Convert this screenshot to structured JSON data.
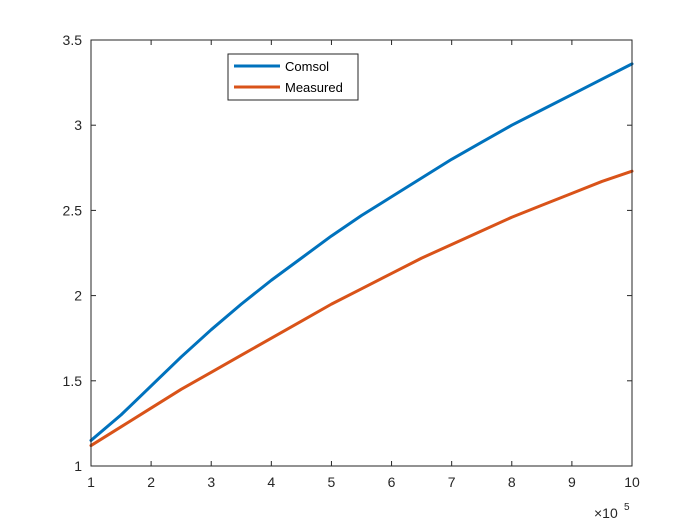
{
  "chart_data": {
    "type": "line",
    "title": "",
    "xlabel": "",
    "ylabel": "",
    "x_multiplier": "×10",
    "x_multiplier_exponent": "5",
    "xlim": [
      1,
      10
    ],
    "ylim": [
      1,
      3.5
    ],
    "x_ticks": [
      1,
      2,
      3,
      4,
      5,
      6,
      7,
      8,
      9,
      10
    ],
    "x_tick_labels": [
      "1",
      "2",
      "3",
      "4",
      "5",
      "6",
      "7",
      "8",
      "9",
      "10"
    ],
    "y_ticks": [
      1,
      1.5,
      2,
      2.5,
      3,
      3.5
    ],
    "y_tick_labels": [
      "1",
      "1.5",
      "2",
      "2.5",
      "3",
      "3.5"
    ],
    "grid": false,
    "legend": "top-left",
    "x": [
      1,
      1.5,
      2,
      2.5,
      3,
      3.5,
      4,
      4.5,
      5,
      5.5,
      6,
      6.5,
      7,
      7.5,
      8,
      8.5,
      9,
      9.5,
      10
    ],
    "series": [
      {
        "name": "Comsol",
        "color": "#0072BD",
        "values": [
          1.15,
          1.3,
          1.47,
          1.64,
          1.8,
          1.95,
          2.09,
          2.22,
          2.35,
          2.47,
          2.58,
          2.69,
          2.8,
          2.9,
          3.0,
          3.09,
          3.18,
          3.27,
          3.36
        ]
      },
      {
        "name": "Measured",
        "color": "#D95319",
        "values": [
          1.12,
          1.23,
          1.34,
          1.45,
          1.55,
          1.65,
          1.75,
          1.85,
          1.95,
          2.04,
          2.13,
          2.22,
          2.3,
          2.38,
          2.46,
          2.53,
          2.6,
          2.67,
          2.73
        ]
      }
    ]
  }
}
